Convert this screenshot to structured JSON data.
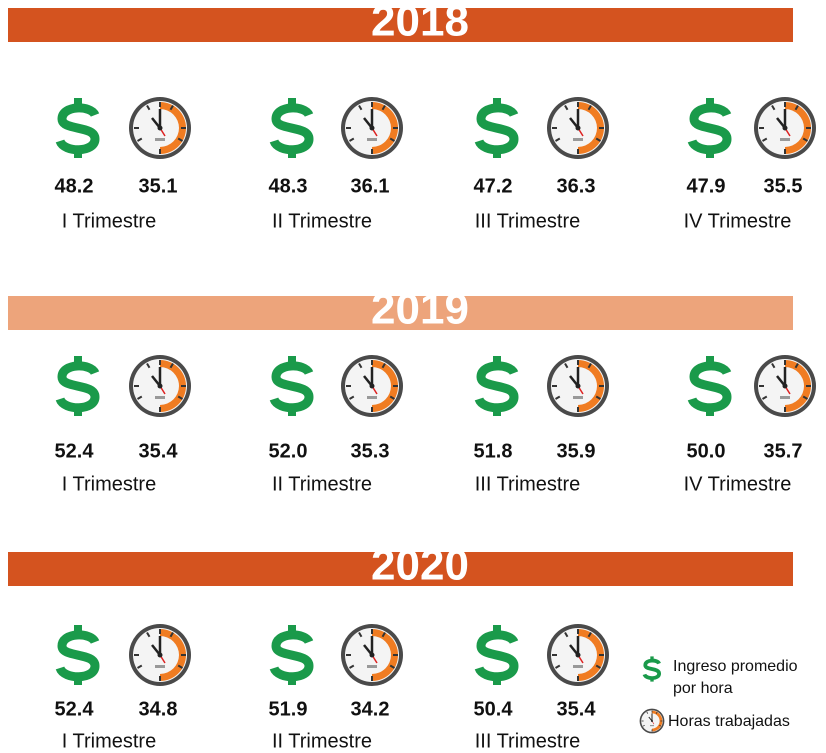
{
  "years": [
    {
      "year": "2018",
      "color": "#d4531f",
      "quarters": [
        {
          "label": "I Trimestre",
          "income": "48.2",
          "hours": "35.1"
        },
        {
          "label": "II Trimestre",
          "income": "48.3",
          "hours": "36.1"
        },
        {
          "label": "III Trimestre",
          "income": "47.2",
          "hours": "36.3"
        },
        {
          "label": "IV Trimestre",
          "income": "47.9",
          "hours": "35.5"
        }
      ]
    },
    {
      "year": "2019",
      "color": "#eda47b",
      "quarters": [
        {
          "label": "I Trimestre",
          "income": "52.4",
          "hours": "35.4"
        },
        {
          "label": "II Trimestre",
          "income": "52.0",
          "hours": "35.3"
        },
        {
          "label": "III Trimestre",
          "income": "51.8",
          "hours": "35.9"
        },
        {
          "label": "IV Trimestre",
          "income": "50.0",
          "hours": "35.7"
        }
      ]
    },
    {
      "year": "2020",
      "color": "#d4531f",
      "quarters": [
        {
          "label": "I Trimestre",
          "income": "52.4",
          "hours": "34.8"
        },
        {
          "label": "II Trimestre",
          "income": "51.9",
          "hours": "34.2"
        },
        {
          "label": "III Trimestre",
          "income": "50.4",
          "hours": "35.4"
        }
      ]
    }
  ],
  "legend": {
    "income": [
      "Ingreso promedio",
      "por hora"
    ],
    "hours": "Horas trabajadas"
  }
}
